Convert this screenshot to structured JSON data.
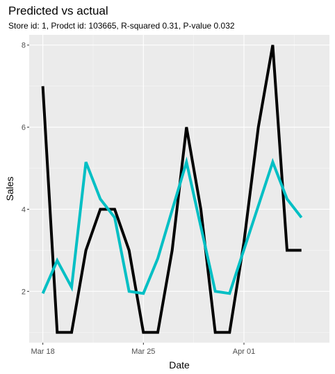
{
  "chart_data": {
    "type": "line",
    "title": "Predicted vs actual",
    "subtitle": "Store id: 1, Prodct id: 103665, R-squared 0.31, P-value 0.032",
    "xlabel": "Date",
    "ylabel": "Sales",
    "x": [
      "2000-03-18",
      "2000-03-19",
      "2000-03-20",
      "2000-03-21",
      "2000-03-22",
      "2000-03-23",
      "2000-03-24",
      "2000-03-25",
      "2000-03-26",
      "2000-03-27",
      "2000-03-28",
      "2000-03-29",
      "2000-03-30",
      "2000-03-31",
      "2000-04-01",
      "2000-04-02",
      "2000-04-03",
      "2000-04-04",
      "2000-04-05",
      "2000-04-06"
    ],
    "x_tick_labels": [
      "Mar 18",
      "Mar 25",
      "Apr 01"
    ],
    "x_tick_values": [
      "2000-03-18",
      "2000-03-25",
      "2000-04-01"
    ],
    "ylim": [
      0.75,
      8.25
    ],
    "y_ticks": [
      2,
      4,
      6,
      8
    ],
    "grid": true,
    "background": "#ebebeb",
    "series": [
      {
        "color": "#000000",
        "values": [
          7,
          1,
          1,
          3,
          4,
          4,
          3,
          1,
          1,
          3,
          6,
          4,
          1,
          1,
          3.2,
          6,
          8,
          3,
          3,
          null
        ]
      },
      {
        "color": "#00bfc4",
        "values": [
          1.95,
          2.75,
          2.1,
          5.15,
          4.25,
          3.8,
          2.0,
          1.95,
          2.8,
          null,
          5.15,
          null,
          2.0,
          1.95,
          null,
          null,
          5.15,
          4.25,
          3.8,
          null
        ]
      }
    ]
  }
}
